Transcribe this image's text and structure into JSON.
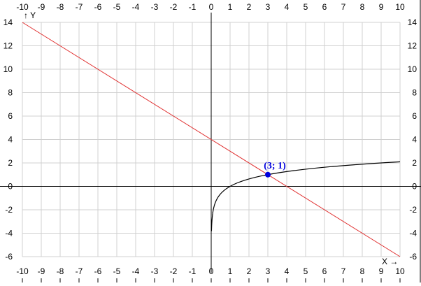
{
  "chart_data": {
    "type": "line",
    "xlim": [
      -10,
      10
    ],
    "ylim": [
      -6,
      14
    ],
    "x_ticks": [
      -10,
      -9,
      -8,
      -7,
      -6,
      -5,
      -4,
      -3,
      -2,
      -1,
      0,
      1,
      2,
      3,
      4,
      5,
      6,
      7,
      8,
      9,
      10
    ],
    "y_ticks": [
      14,
      12,
      10,
      8,
      6,
      4,
      2,
      0,
      -2,
      -4,
      -6
    ],
    "xlabel": "X →",
    "ylabel": "↑ Y",
    "grid": true,
    "series": [
      {
        "function": "y = log3(x)",
        "color": "#000000",
        "x_range": [
          0.015,
          10
        ]
      },
      {
        "function": "y = 4 - x",
        "color": "#e03030",
        "points": [
          [
            -10,
            14
          ],
          [
            10,
            -6
          ]
        ]
      }
    ],
    "annotations": [
      {
        "label": "(3; 1)",
        "x": 3,
        "y": 1,
        "color": "#0000dd"
      }
    ]
  }
}
